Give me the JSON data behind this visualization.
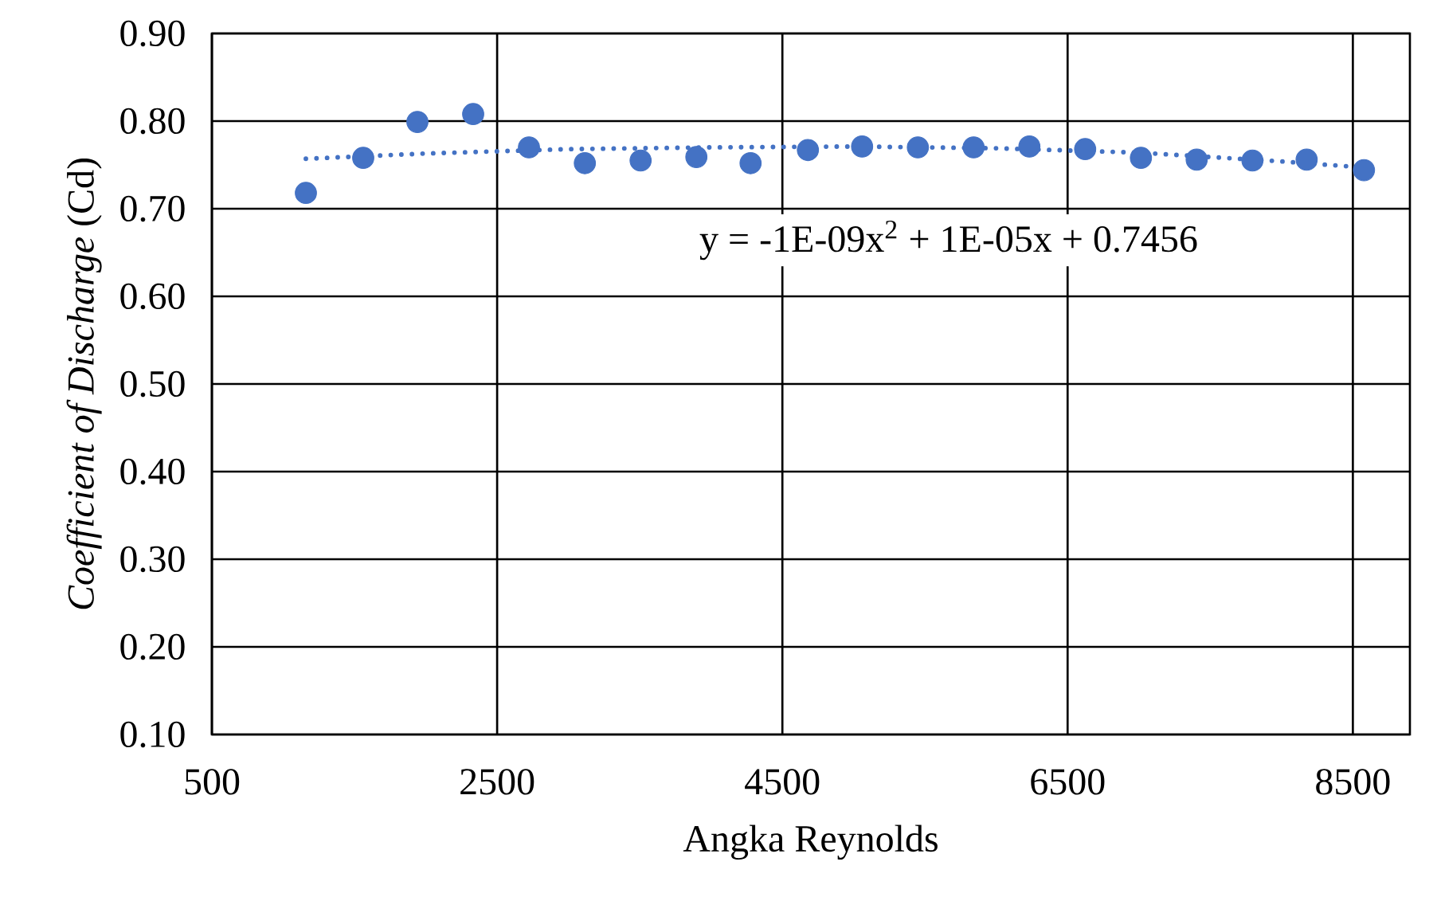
{
  "chart_data": {
    "type": "scatter",
    "xlabel": "Angka Reynolds",
    "ylabel": "*Coefficient of Discharge* (Cd)",
    "xlim": [
      500,
      8900
    ],
    "xticks": [
      500,
      2500,
      4500,
      6500,
      8500
    ],
    "ylim": [
      0.1,
      0.9
    ],
    "yticks": [
      {
        "value": 0.1,
        "label": "0.10"
      },
      {
        "value": 0.2,
        "label": "0.20"
      },
      {
        "value": 0.3,
        "label": "0.30"
      },
      {
        "value": 0.4,
        "label": "0.40"
      },
      {
        "value": 0.5,
        "label": "0.50"
      },
      {
        "value": 0.6,
        "label": "0.60"
      },
      {
        "value": 0.7,
        "label": "0.70"
      },
      {
        "value": 0.8,
        "label": "0.80"
      },
      {
        "value": 0.9,
        "label": "0.90"
      }
    ],
    "grid": true,
    "annotations": [
      "y = -1E-09x$^{2}$ + 1E-05x + 0.7456"
    ],
    "series": [
      {
        "marker": "circle",
        "color": "#4472c4",
        "x": [
          1159,
          1561,
          1941,
          2332,
          2723,
          3115,
          3506,
          3897,
          4277,
          4679,
          5059,
          5450,
          5841,
          6232,
          6623,
          7014,
          7405,
          7796,
          8176,
          8578
        ],
        "values": [
          0.718,
          0.758,
          0.799,
          0.808,
          0.77,
          0.752,
          0.755,
          0.759,
          0.752,
          0.767,
          0.771,
          0.77,
          0.77,
          0.771,
          0.768,
          0.758,
          0.756,
          0.755,
          0.756,
          0.744
        ]
      },
      {
        "type": "line",
        "marker": "none",
        "line_style": "dotted",
        "color": "#4472c4",
        "x": [
          1159,
          2000,
          3000,
          4000,
          5000,
          6000,
          7000,
          8000,
          8578
        ],
        "values": [
          0.757,
          0.763,
          0.768,
          0.77,
          0.771,
          0.769,
          0.764,
          0.754,
          0.747
        ]
      }
    ]
  }
}
